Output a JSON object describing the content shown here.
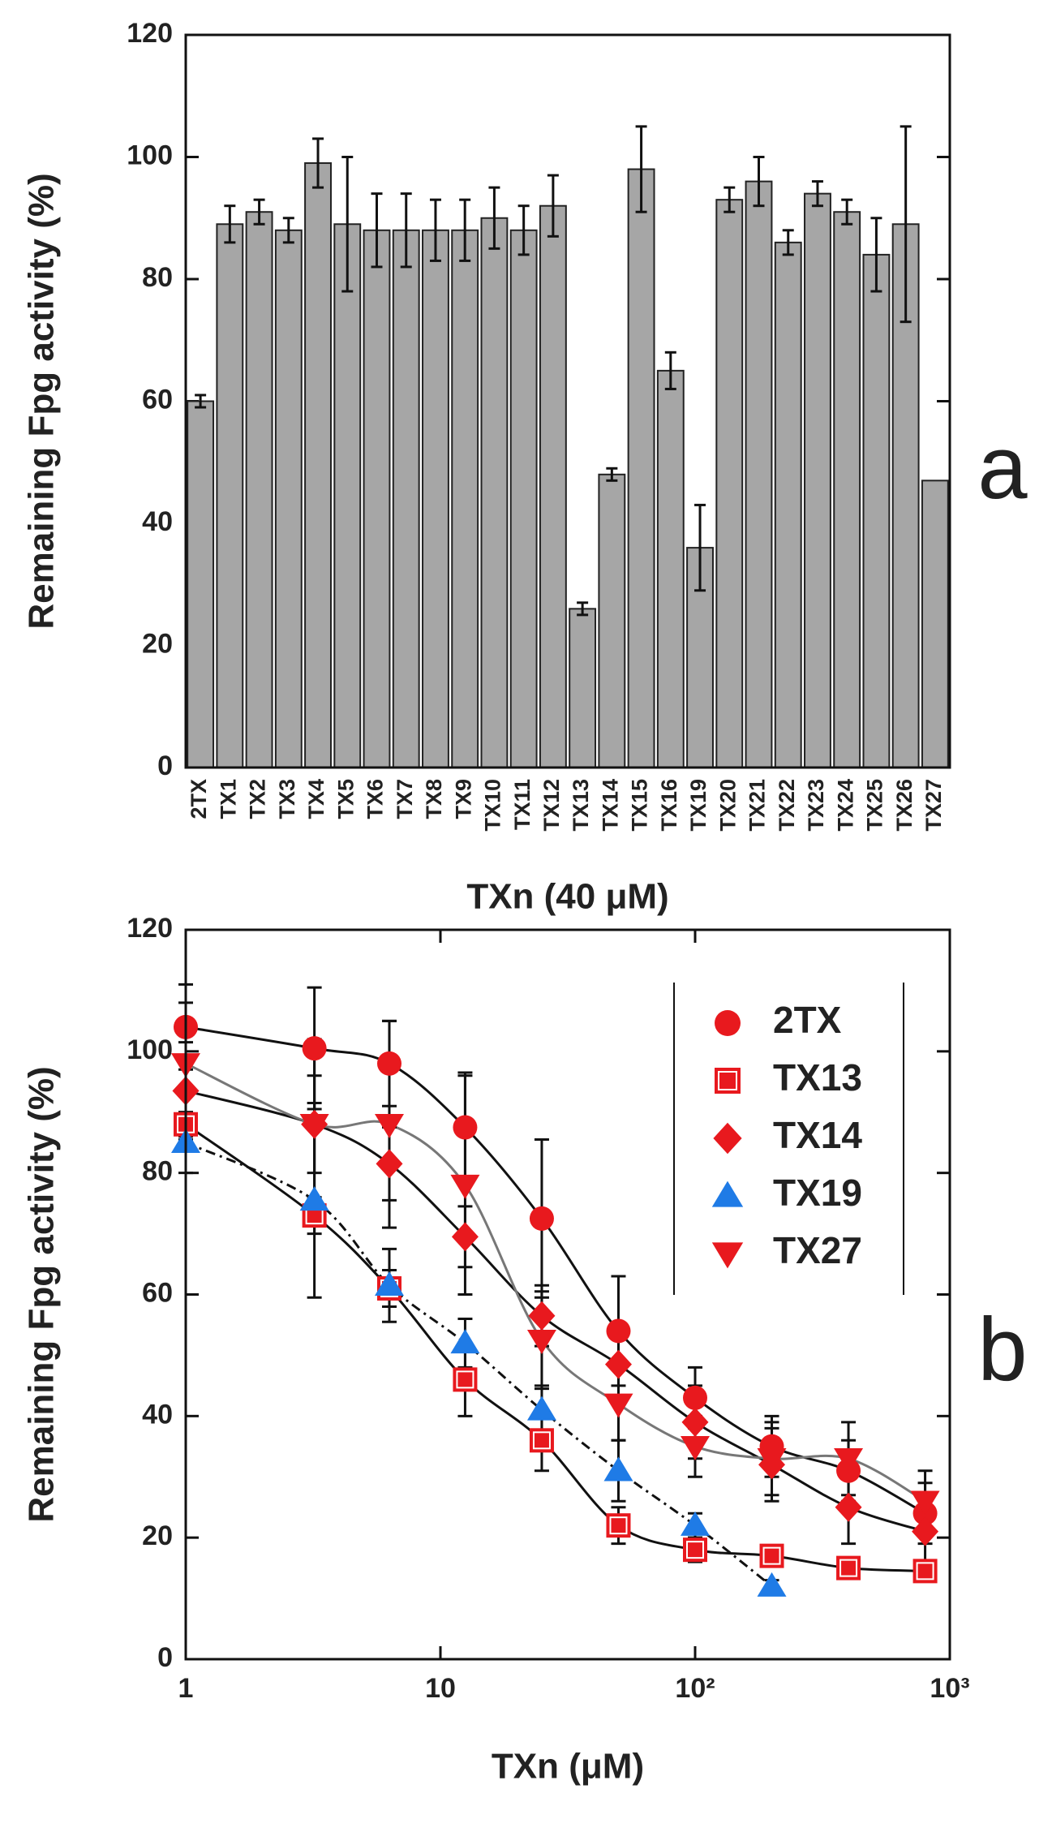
{
  "chart_data": [
    {
      "type": "bar",
      "panel": "a",
      "xlabel": "TXn (40 μM)",
      "ylabel": "Remaining Fpg activity (%)",
      "categories": [
        "2TX",
        "TX1",
        "TX2",
        "TX3",
        "TX4",
        "TX5",
        "TX6",
        "TX7",
        "TX8",
        "TX9",
        "TX10",
        "TX11",
        "TX12",
        "TX13",
        "TX14",
        "TX15",
        "TX16",
        "TX19",
        "TX20",
        "TX21",
        "TX22",
        "TX23",
        "TX24",
        "TX25",
        "TX26",
        "TX27"
      ],
      "category_colors": [
        "#e8252a",
        "#222222",
        "#222222",
        "#222222",
        "#222222",
        "#222222",
        "#222222",
        "#222222",
        "#222222",
        "#222222",
        "#222222",
        "#222222",
        "#222222",
        "#e8252a",
        "#e8252a",
        "#e8252a",
        "#3b8ee0",
        "#3b8ee0",
        "#e8252a",
        "#e8252a",
        "#e8252a",
        "#222222",
        "#222222",
        "#222222",
        "#222222",
        "#e8252a"
      ],
      "values": [
        60,
        89,
        91,
        88,
        99,
        89,
        88,
        88,
        88,
        88,
        90,
        88,
        92,
        26,
        48,
        98,
        65,
        36,
        93,
        96,
        86,
        94,
        91,
        84,
        89,
        47
      ],
      "errors": [
        1,
        3,
        2,
        2,
        4,
        11,
        6,
        6,
        5,
        5,
        5,
        4,
        5,
        1,
        1,
        7,
        3,
        7,
        2,
        4,
        2,
        2,
        2,
        6,
        16,
        null
      ],
      "color": "#a6a6a6",
      "ylim": [
        0,
        120
      ],
      "yticks": [
        0,
        20,
        40,
        60,
        80,
        100,
        120
      ]
    },
    {
      "type": "scatter",
      "panel": "b",
      "xlabel": "TXn (μM)",
      "ylabel": "Remaining Fpg activity (%)",
      "xscale": "log",
      "x": [
        1,
        3.2,
        6.3,
        12.5,
        25,
        50,
        100,
        200,
        400,
        800
      ],
      "xlim": [
        1,
        1000
      ],
      "xticks": [
        1,
        10,
        {
          "value": 100,
          "label": "10²"
        },
        {
          "value": 1000,
          "label": "10³"
        }
      ],
      "ylim": [
        0,
        120
      ],
      "yticks": [
        0,
        20,
        40,
        60,
        80,
        100,
        120
      ],
      "legend": "upper right",
      "series": [
        {
          "name": "2TX",
          "color": "#e8191e",
          "marker": "circle",
          "line_color": "#111111",
          "line_style": "solid",
          "values": [
            104,
            100.5,
            98,
            87.5,
            72.5,
            54,
            43,
            35,
            31,
            24
          ],
          "errors": [
            7,
            10,
            7,
            9,
            13,
            9,
            5,
            5,
            5,
            5
          ]
        },
        {
          "name": "TX13",
          "color": "#e8191e",
          "marker": "square",
          "line_color": "#111111",
          "line_style": "solid",
          "values": [
            88,
            73,
            61,
            46,
            36,
            22,
            18,
            17,
            15,
            14.5
          ],
          "errors": [
            2,
            3,
            3,
            6,
            5,
            3,
            2,
            1,
            1,
            1
          ]
        },
        {
          "name": "TX14",
          "color": "#e8191e",
          "marker": "diamond",
          "line_color": "#111111",
          "line_style": "solid",
          "values": [
            93.5,
            88,
            81.5,
            69.5,
            56.5,
            48.5,
            39,
            32,
            25,
            21
          ],
          "errors": [
            8,
            8,
            6,
            5,
            5,
            6,
            6,
            6,
            6,
            5
          ]
        },
        {
          "name": "TX19",
          "color": "#1f7be6",
          "marker": "triangle-up",
          "line_color": "#111111",
          "line_style": "dashdot",
          "values": [
            85,
            75.5,
            61.5,
            52,
            41,
            31,
            22,
            12,
            null,
            null
          ],
          "errors": [
            5,
            16,
            6,
            4,
            4,
            5,
            2,
            1,
            null,
            null
          ]
        },
        {
          "name": "TX27",
          "color": "#e8191e",
          "marker": "triangle-down",
          "line_color": "#777777",
          "line_style": "solid",
          "values": [
            98,
            88,
            88,
            78,
            52.5,
            42,
            35,
            33,
            33,
            26
          ],
          "errors": [
            10,
            14,
            17,
            18,
            8,
            6,
            5,
            6,
            6,
            5
          ]
        }
      ]
    }
  ]
}
